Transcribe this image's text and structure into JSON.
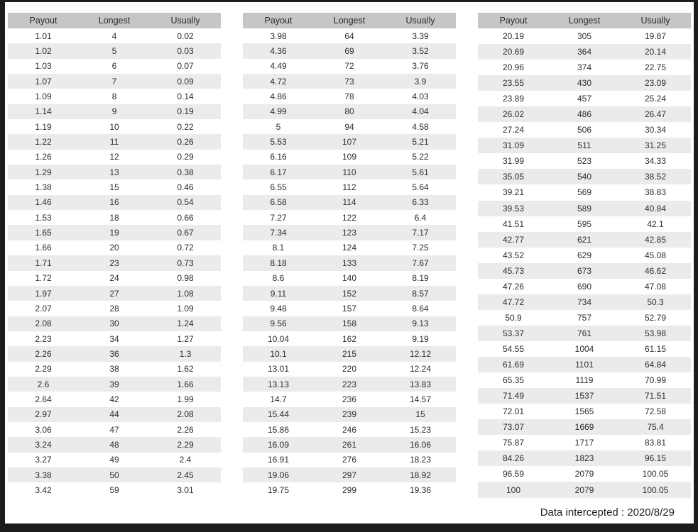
{
  "footer": {
    "note": "Data intercepted : 2020/8/29"
  },
  "colors": {
    "frame": "#1c1c1c",
    "header_bg": "#c6c6c6",
    "stripe_bg": "#ebebeb",
    "text": "#2e2e2e"
  },
  "tables": [
    {
      "headers": [
        "Payout",
        "Longest",
        "Usually"
      ],
      "rows": [
        [
          "1.01",
          "4",
          "0.02"
        ],
        [
          "1.02",
          "5",
          "0.03"
        ],
        [
          "1.03",
          "6",
          "0.07"
        ],
        [
          "1.07",
          "7",
          "0.09"
        ],
        [
          "1.09",
          "8",
          "0.14"
        ],
        [
          "1.14",
          "9",
          "0.19"
        ],
        [
          "1.19",
          "10",
          "0.22"
        ],
        [
          "1.22",
          "11",
          "0.26"
        ],
        [
          "1.26",
          "12",
          "0.29"
        ],
        [
          "1.29",
          "13",
          "0.38"
        ],
        [
          "1.38",
          "15",
          "0.46"
        ],
        [
          "1.46",
          "16",
          "0.54"
        ],
        [
          "1.53",
          "18",
          "0.66"
        ],
        [
          "1.65",
          "19",
          "0.67"
        ],
        [
          "1.66",
          "20",
          "0.72"
        ],
        [
          "1.71",
          "23",
          "0.73"
        ],
        [
          "1.72",
          "24",
          "0.98"
        ],
        [
          "1.97",
          "27",
          "1.08"
        ],
        [
          "2.07",
          "28",
          "1.09"
        ],
        [
          "2.08",
          "30",
          "1.24"
        ],
        [
          "2.23",
          "34",
          "1.27"
        ],
        [
          "2.26",
          "36",
          "1.3"
        ],
        [
          "2.29",
          "38",
          "1.62"
        ],
        [
          "2.6",
          "39",
          "1.66"
        ],
        [
          "2.64",
          "42",
          "1.99"
        ],
        [
          "2.97",
          "44",
          "2.08"
        ],
        [
          "3.06",
          "47",
          "2.26"
        ],
        [
          "3.24",
          "48",
          "2.29"
        ],
        [
          "3.27",
          "49",
          "2.4"
        ],
        [
          "3.38",
          "50",
          "2.45"
        ],
        [
          "3.42",
          "59",
          "3.01"
        ]
      ]
    },
    {
      "headers": [
        "Payout",
        "Longest",
        "Usually"
      ],
      "rows": [
        [
          "3.98",
          "64",
          "3.39"
        ],
        [
          "4.36",
          "69",
          "3.52"
        ],
        [
          "4.49",
          "72",
          "3.76"
        ],
        [
          "4.72",
          "73",
          "3.9"
        ],
        [
          "4.86",
          "78",
          "4.03"
        ],
        [
          "4.99",
          "80",
          "4.04"
        ],
        [
          "5",
          "94",
          "4.58"
        ],
        [
          "5.53",
          "107",
          "5.21"
        ],
        [
          "6.16",
          "109",
          "5.22"
        ],
        [
          "6.17",
          "110",
          "5.61"
        ],
        [
          "6.55",
          "112",
          "5.64"
        ],
        [
          "6.58",
          "114",
          "6.33"
        ],
        [
          "7.27",
          "122",
          "6.4"
        ],
        [
          "7.34",
          "123",
          "7.17"
        ],
        [
          "8.1",
          "124",
          "7.25"
        ],
        [
          "8.18",
          "133",
          "7.67"
        ],
        [
          "8.6",
          "140",
          "8.19"
        ],
        [
          "9.11",
          "152",
          "8.57"
        ],
        [
          "9.48",
          "157",
          "8.64"
        ],
        [
          "9.56",
          "158",
          "9.13"
        ],
        [
          "10.04",
          "162",
          "9.19"
        ],
        [
          "10.1",
          "215",
          "12.12"
        ],
        [
          "13.01",
          "220",
          "12.24"
        ],
        [
          "13.13",
          "223",
          "13.83"
        ],
        [
          "14.7",
          "236",
          "14.57"
        ],
        [
          "15.44",
          "239",
          "15"
        ],
        [
          "15.86",
          "246",
          "15.23"
        ],
        [
          "16.09",
          "261",
          "16.06"
        ],
        [
          "16.91",
          "276",
          "18.23"
        ],
        [
          "19.06",
          "297",
          "18.92"
        ],
        [
          "19.75",
          "299",
          "19.36"
        ]
      ]
    },
    {
      "headers": [
        "Payout",
        "Longest",
        "Usually"
      ],
      "rows": [
        [
          "20.19",
          "305",
          "19.87"
        ],
        [
          "20.69",
          "364",
          "20.14"
        ],
        [
          "20.96",
          "374",
          "22.75"
        ],
        [
          "23.55",
          "430",
          "23.09"
        ],
        [
          "23.89",
          "457",
          "25.24"
        ],
        [
          "26.02",
          "486",
          "26.47"
        ],
        [
          "27.24",
          "506",
          "30.34"
        ],
        [
          "31.09",
          "511",
          "31.25"
        ],
        [
          "31.99",
          "523",
          "34.33"
        ],
        [
          "35.05",
          "540",
          "38.52"
        ],
        [
          "39.21",
          "569",
          "38.83"
        ],
        [
          "39.53",
          "589",
          "40.84"
        ],
        [
          "41.51",
          "595",
          "42.1"
        ],
        [
          "42.77",
          "621",
          "42.85"
        ],
        [
          "43.52",
          "629",
          "45.08"
        ],
        [
          "45.73",
          "673",
          "46.62"
        ],
        [
          "47.26",
          "690",
          "47.08"
        ],
        [
          "47.72",
          "734",
          "50.3"
        ],
        [
          "50.9",
          "757",
          "52.79"
        ],
        [
          "53.37",
          "761",
          "53.98"
        ],
        [
          "54.55",
          "1004",
          "61.15"
        ],
        [
          "61.69",
          "1101",
          "64.84"
        ],
        [
          "65.35",
          "1119",
          "70.99"
        ],
        [
          "71.49",
          "1537",
          "71.51"
        ],
        [
          "72.01",
          "1565",
          "72.58"
        ],
        [
          "73.07",
          "1669",
          "75.4"
        ],
        [
          "75.87",
          "1717",
          "83.81"
        ],
        [
          "84.26",
          "1823",
          "96.15"
        ],
        [
          "96.59",
          "2079",
          "100.05"
        ],
        [
          "100",
          "2079",
          "100.05"
        ]
      ]
    }
  ]
}
